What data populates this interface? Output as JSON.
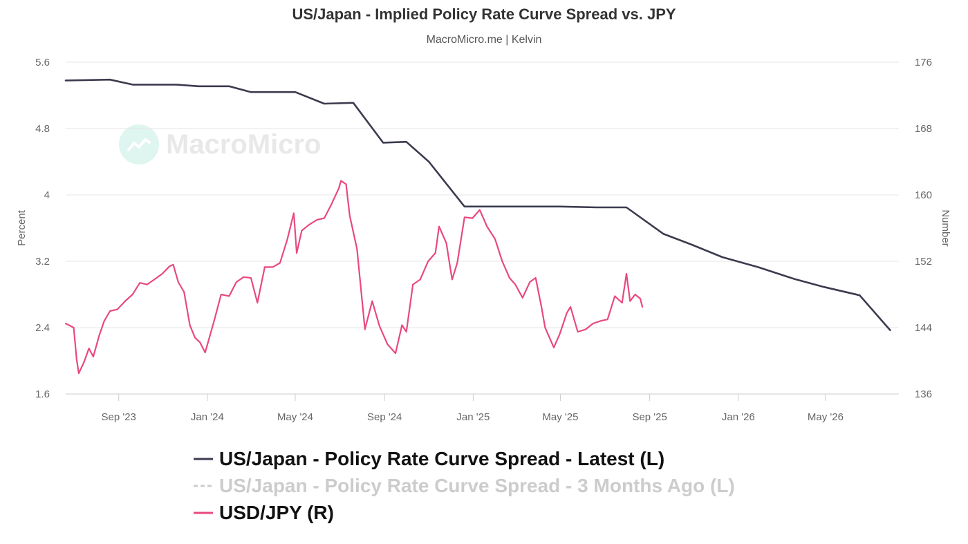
{
  "title": "US/Japan - Implied Policy Rate Curve Spread vs. JPY",
  "subtitle": "MacroMicro.me | Kelvin",
  "watermark": {
    "text": "MacroMicro",
    "icon": "chart-line-icon"
  },
  "colors": {
    "spread_latest": "#3b3b4f",
    "spread_3m": "#bbbbbb",
    "usdjpy": "#e8497f",
    "grid": "#e6e6e6"
  },
  "chart_data": {
    "type": "line",
    "title": "US/Japan - Implied Policy Rate Curve Spread vs. JPY",
    "subtitle": "MacroMicro.me | Kelvin",
    "x_axis": {
      "type": "date",
      "range": [
        "2023-06-20",
        "2026-08-10"
      ],
      "ticks": [
        {
          "date": "2023-09-01",
          "label": "Sep '23"
        },
        {
          "date": "2024-01-01",
          "label": "Jan '24"
        },
        {
          "date": "2024-05-01",
          "label": "May '24"
        },
        {
          "date": "2024-09-01",
          "label": "Sep '24"
        },
        {
          "date": "2025-01-01",
          "label": "Jan '25"
        },
        {
          "date": "2025-05-01",
          "label": "May '25"
        },
        {
          "date": "2025-09-01",
          "label": "Sep '25"
        },
        {
          "date": "2026-01-01",
          "label": "Jan '26"
        },
        {
          "date": "2026-05-01",
          "label": "May '26"
        }
      ]
    },
    "y_left": {
      "label": "Percent",
      "range": [
        1.6,
        5.6
      ],
      "ticks": [
        "1.6",
        "2.4",
        "3.2",
        "4",
        "4.8",
        "5.6"
      ]
    },
    "y_right": {
      "label": "Number",
      "range": [
        136,
        176
      ],
      "ticks": [
        "136",
        "144",
        "152",
        "160",
        "168",
        "176"
      ]
    },
    "grid": true,
    "legend_position": "bottom",
    "series": [
      {
        "name": "US/Japan - Policy Rate Curve Spread - Latest (L)",
        "axis": "left",
        "style": "solid",
        "visible": true,
        "points": [
          [
            "2023-06-20",
            5.38
          ],
          [
            "2023-08-20",
            5.39
          ],
          [
            "2023-09-20",
            5.33
          ],
          [
            "2023-11-20",
            5.33
          ],
          [
            "2023-12-20",
            5.31
          ],
          [
            "2024-01-31",
            5.31
          ],
          [
            "2024-03-01",
            5.24
          ],
          [
            "2024-04-01",
            5.24
          ],
          [
            "2024-05-01",
            5.24
          ],
          [
            "2024-06-10",
            5.1
          ],
          [
            "2024-07-20",
            5.11
          ],
          [
            "2024-08-30",
            4.63
          ],
          [
            "2024-10-01",
            4.64
          ],
          [
            "2024-11-01",
            4.4
          ],
          [
            "2024-12-20",
            3.86
          ],
          [
            "2025-01-31",
            3.86
          ],
          [
            "2025-03-20",
            3.86
          ],
          [
            "2025-05-01",
            3.86
          ],
          [
            "2025-06-20",
            3.85
          ],
          [
            "2025-07-31",
            3.85
          ],
          [
            "2025-09-20",
            3.53
          ],
          [
            "2025-10-29",
            3.4
          ],
          [
            "2025-12-10",
            3.25
          ],
          [
            "2026-01-28",
            3.13
          ],
          [
            "2026-03-18",
            2.99
          ],
          [
            "2026-04-29",
            2.89
          ],
          [
            "2026-06-17",
            2.79
          ],
          [
            "2026-07-29",
            2.37
          ]
        ]
      },
      {
        "name": "US/Japan - Policy Rate Curve Spread - 3 Months Ago (L)",
        "axis": "left",
        "style": "dashed",
        "visible": false,
        "points": []
      },
      {
        "name": "USD/JPY (R)",
        "axis": "right",
        "style": "solid",
        "visible": true,
        "points": [
          [
            "2023-06-20",
            144.5
          ],
          [
            "2023-07-01",
            144.0
          ],
          [
            "2023-07-05",
            140.2
          ],
          [
            "2023-07-08",
            138.5
          ],
          [
            "2023-07-15",
            139.8
          ],
          [
            "2023-07-22",
            141.5
          ],
          [
            "2023-07-28",
            140.5
          ],
          [
            "2023-08-05",
            143.0
          ],
          [
            "2023-08-12",
            144.8
          ],
          [
            "2023-08-20",
            146.0
          ],
          [
            "2023-08-30",
            146.2
          ],
          [
            "2023-09-10",
            147.2
          ],
          [
            "2023-09-20",
            148.0
          ],
          [
            "2023-09-30",
            149.4
          ],
          [
            "2023-10-10",
            149.2
          ],
          [
            "2023-10-20",
            149.8
          ],
          [
            "2023-10-31",
            150.5
          ],
          [
            "2023-11-10",
            151.4
          ],
          [
            "2023-11-15",
            151.6
          ],
          [
            "2023-11-22",
            149.5
          ],
          [
            "2023-11-30",
            148.3
          ],
          [
            "2023-12-08",
            144.3
          ],
          [
            "2023-12-15",
            142.8
          ],
          [
            "2023-12-22",
            142.2
          ],
          [
            "2023-12-29",
            141.0
          ],
          [
            "2024-01-10",
            144.7
          ],
          [
            "2024-01-20",
            148.0
          ],
          [
            "2024-01-31",
            147.8
          ],
          [
            "2024-02-10",
            149.5
          ],
          [
            "2024-02-20",
            150.1
          ],
          [
            "2024-03-01",
            150.0
          ],
          [
            "2024-03-10",
            147.0
          ],
          [
            "2024-03-20",
            151.3
          ],
          [
            "2024-03-31",
            151.3
          ],
          [
            "2024-04-10",
            151.8
          ],
          [
            "2024-04-20",
            154.6
          ],
          [
            "2024-04-29",
            157.8
          ],
          [
            "2024-05-03",
            153.0
          ],
          [
            "2024-05-10",
            155.7
          ],
          [
            "2024-05-20",
            156.4
          ],
          [
            "2024-05-31",
            157.0
          ],
          [
            "2024-06-10",
            157.2
          ],
          [
            "2024-06-20",
            158.9
          ],
          [
            "2024-06-30",
            160.8
          ],
          [
            "2024-07-03",
            161.7
          ],
          [
            "2024-07-10",
            161.3
          ],
          [
            "2024-07-15",
            157.5
          ],
          [
            "2024-07-25",
            153.5
          ],
          [
            "2024-08-05",
            143.8
          ],
          [
            "2024-08-15",
            147.2
          ],
          [
            "2024-08-25",
            144.2
          ],
          [
            "2024-09-05",
            142.0
          ],
          [
            "2024-09-16",
            140.9
          ],
          [
            "2024-09-25",
            144.3
          ],
          [
            "2024-10-01",
            143.5
          ],
          [
            "2024-10-10",
            149.2
          ],
          [
            "2024-10-20",
            149.8
          ],
          [
            "2024-10-31",
            152.0
          ],
          [
            "2024-11-10",
            153.0
          ],
          [
            "2024-11-15",
            156.2
          ],
          [
            "2024-11-25",
            154.2
          ],
          [
            "2024-12-03",
            149.8
          ],
          [
            "2024-12-10",
            151.8
          ],
          [
            "2024-12-20",
            157.3
          ],
          [
            "2024-12-31",
            157.2
          ],
          [
            "2025-01-10",
            158.2
          ],
          [
            "2025-01-20",
            156.2
          ],
          [
            "2025-01-31",
            154.7
          ],
          [
            "2025-02-10",
            152.0
          ],
          [
            "2025-02-20",
            150.0
          ],
          [
            "2025-02-28",
            149.2
          ],
          [
            "2025-03-10",
            147.6
          ],
          [
            "2025-03-20",
            149.5
          ],
          [
            "2025-03-28",
            150.0
          ],
          [
            "2025-04-05",
            146.5
          ],
          [
            "2025-04-10",
            144.0
          ],
          [
            "2025-04-22",
            141.6
          ],
          [
            "2025-04-30",
            143.2
          ],
          [
            "2025-05-10",
            145.8
          ],
          [
            "2025-05-15",
            146.5
          ],
          [
            "2025-05-25",
            143.5
          ],
          [
            "2025-06-05",
            143.8
          ],
          [
            "2025-06-15",
            144.5
          ],
          [
            "2025-06-25",
            144.8
          ],
          [
            "2025-07-05",
            145.0
          ],
          [
            "2025-07-15",
            147.8
          ],
          [
            "2025-07-25",
            147.0
          ],
          [
            "2025-07-31",
            150.5
          ],
          [
            "2025-08-05",
            147.2
          ],
          [
            "2025-08-12",
            148.0
          ],
          [
            "2025-08-19",
            147.5
          ],
          [
            "2025-08-22",
            146.5
          ]
        ]
      }
    ]
  }
}
